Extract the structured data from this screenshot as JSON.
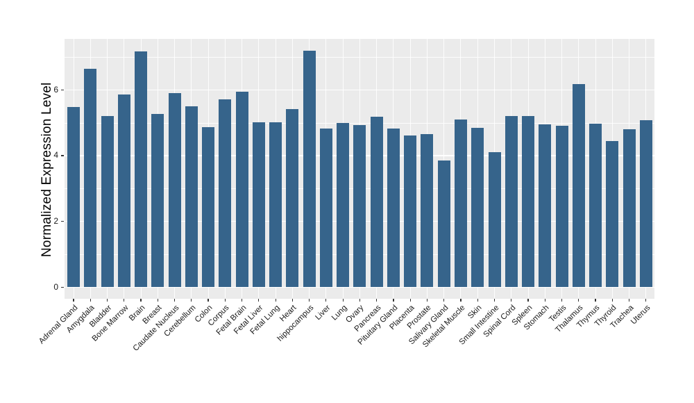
{
  "chart_data": {
    "type": "bar",
    "title": "",
    "xlabel": "",
    "ylabel": "Normalized Expression Level",
    "categories": [
      "Adrenal Gland",
      "Amygdala",
      "Bladder",
      "Bone Marrow",
      "Brain",
      "Breast",
      "Caudate Nucleus",
      "Cerebellum",
      "Colon",
      "Corpus",
      "Fetal Brain",
      "Fetal Liver",
      "Fetal Lung",
      "Heart",
      "hippocampus",
      "Liver",
      "Lung",
      "Ovary",
      "Pancreas",
      "Pituitary Gland",
      "Placenta",
      "Prostate",
      "Salivary Gland",
      "Skeletal Muscle",
      "Skin",
      "Small Intestine",
      "Spinal Cord",
      "Spleen",
      "Stomach",
      "Testis",
      "Thalamus",
      "Thymus",
      "Thyroid",
      "Trachea",
      "Uterus"
    ],
    "values": [
      5.47,
      6.65,
      5.2,
      5.86,
      7.16,
      5.27,
      5.91,
      5.5,
      4.87,
      5.71,
      5.94,
      5.01,
      5.01,
      5.42,
      7.18,
      4.82,
      5.0,
      4.93,
      5.19,
      4.83,
      4.61,
      4.66,
      3.85,
      5.09,
      4.84,
      4.11,
      5.2,
      5.2,
      4.96,
      4.91,
      6.18,
      4.97,
      4.44,
      4.81,
      5.08
    ],
    "ylim": [
      -0.36,
      7.55
    ],
    "yticks": [
      0,
      2,
      4,
      6
    ],
    "ytick_labels": [
      "0",
      "2",
      "4",
      "6"
    ],
    "minor_gridlines": [
      1,
      3,
      5,
      7
    ],
    "x_tick_angle": 45,
    "legend_position": "none",
    "grid": "on",
    "bar_color": "#36648B",
    "panel_background": "#EBEBEB",
    "gridline_color": "#FFFFFF",
    "axis_text_color": "#1A1A1A",
    "axis_title_color": "#000000"
  }
}
